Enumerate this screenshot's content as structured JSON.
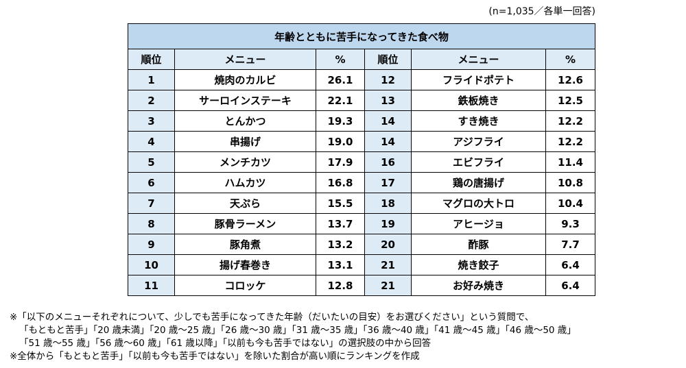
{
  "sample_note": "(n=1,035／各単一回答)",
  "table": {
    "title": "年齢とともに苦手になってきた食べ物",
    "headers": {
      "rank": "順位",
      "menu": "メニュー",
      "pct": "%"
    },
    "left": [
      {
        "rank": "1",
        "menu": "焼肉のカルビ",
        "pct": "26.1"
      },
      {
        "rank": "2",
        "menu": "サーロインステーキ",
        "pct": "22.1"
      },
      {
        "rank": "3",
        "menu": "とんかつ",
        "pct": "19.3"
      },
      {
        "rank": "4",
        "menu": "串揚げ",
        "pct": "19.0"
      },
      {
        "rank": "5",
        "menu": "メンチカツ",
        "pct": "17.9"
      },
      {
        "rank": "6",
        "menu": "ハムカツ",
        "pct": "16.8"
      },
      {
        "rank": "7",
        "menu": "天ぷら",
        "pct": "15.5"
      },
      {
        "rank": "8",
        "menu": "豚骨ラーメン",
        "pct": "13.7"
      },
      {
        "rank": "9",
        "menu": "豚角煮",
        "pct": "13.2"
      },
      {
        "rank": "10",
        "menu": "揚げ春巻き",
        "pct": "13.1"
      },
      {
        "rank": "11",
        "menu": "コロッケ",
        "pct": "12.8"
      }
    ],
    "right": [
      {
        "rank": "12",
        "menu": "フライドポテト",
        "pct": "12.6"
      },
      {
        "rank": "13",
        "menu": "鉄板焼き",
        "pct": "12.5"
      },
      {
        "rank": "14",
        "menu": "すき焼き",
        "pct": "12.2"
      },
      {
        "rank": "14",
        "menu": "アジフライ",
        "pct": "12.2"
      },
      {
        "rank": "16",
        "menu": "エビフライ",
        "pct": "11.4"
      },
      {
        "rank": "17",
        "menu": "鶏の唐揚げ",
        "pct": "10.8"
      },
      {
        "rank": "18",
        "menu": "マグロの大トロ",
        "pct": "10.4"
      },
      {
        "rank": "19",
        "menu": "アヒージョ",
        "pct": "9.3"
      },
      {
        "rank": "20",
        "menu": "酢豚",
        "pct": "7.7"
      },
      {
        "rank": "21",
        "menu": "焼き餃子",
        "pct": "6.4"
      },
      {
        "rank": "21",
        "menu": "お好み焼き",
        "pct": "6.4"
      }
    ]
  },
  "notes": {
    "line1": "※「以下のメニューそれぞれについて、少しでも苦手になってきた年齢（だいたいの目安）をお選びください」という質問で、",
    "line2": "「もともと苦手」「20 歳未満」「20 歳～25 歳」「26 歳～30 歳」「31 歳～35 歳」「36 歳～40 歳」「41 歳～45 歳」「46 歳～50 歳」",
    "line3": "「51 歳～55 歳」「56 歳～60 歳」「61 歳以降」「以前も今も苦手ではない」の選択肢の中から回答",
    "line4": "※全体から「もともと苦手」「以前も今も苦手ではない」を除いた割合が高い順にランキングを作成"
  }
}
